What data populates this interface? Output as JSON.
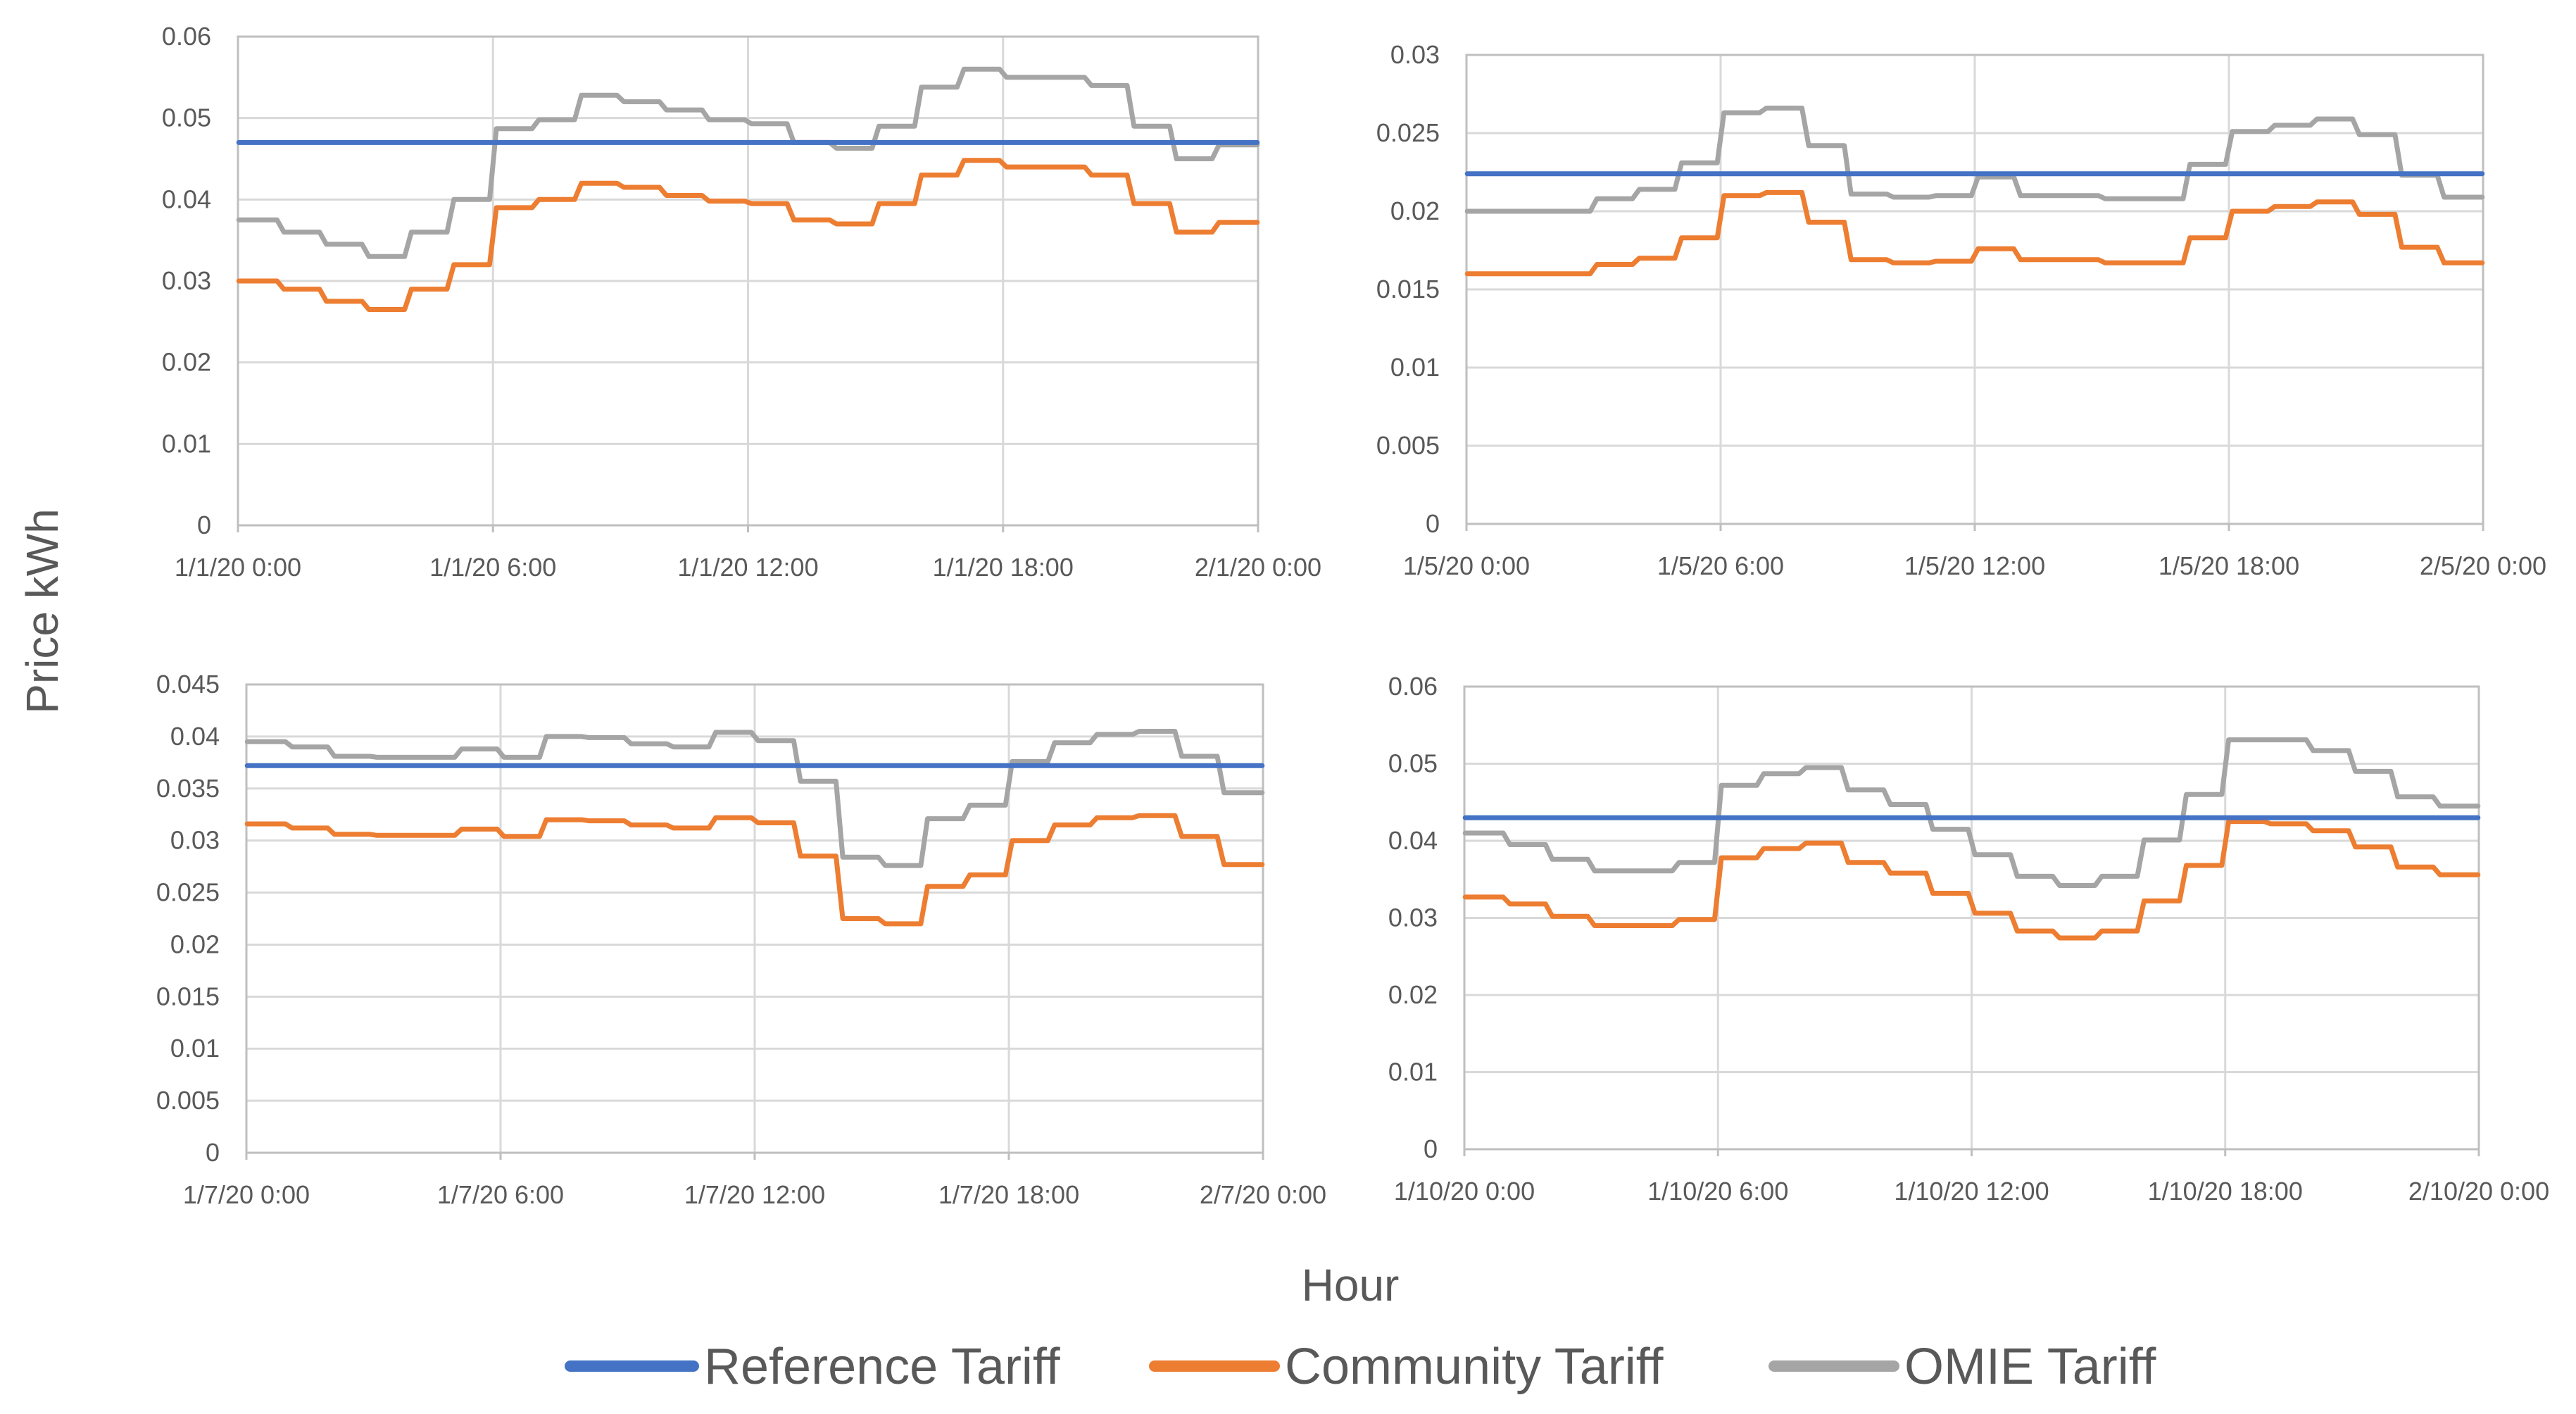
{
  "figure": {
    "ylabel": "Price kWh",
    "xlabel": "Hour",
    "legend": [
      {
        "name": "Reference Tariff",
        "color": "#4472C4"
      },
      {
        "name": "Community Tariff",
        "color": "#ED7D31"
      },
      {
        "name": "OMIE Tariff",
        "color": "#A5A5A5"
      }
    ]
  },
  "chart_data": [
    {
      "type": "line",
      "title": "",
      "xlabel": "Hour",
      "ylabel": "Price kWh",
      "xlim": [
        0,
        24
      ],
      "ylim": [
        0,
        0.06
      ],
      "yticks": [
        0,
        0.01,
        0.02,
        0.03,
        0.04,
        0.05,
        0.06
      ],
      "ytick_labels": [
        "0",
        "0.01",
        "0.02",
        "0.03",
        "0.04",
        "0.05",
        "0.06"
      ],
      "xticks": [
        0,
        6,
        12,
        18,
        24
      ],
      "xtick_labels": [
        "1/1/20 0:00",
        "1/1/20 6:00",
        "1/1/20 12:00",
        "1/1/20 18:00",
        "2/1/20 0:00"
      ],
      "x": [
        0,
        1,
        2,
        3,
        4,
        5,
        6,
        7,
        8,
        9,
        10,
        11,
        12,
        13,
        14,
        15,
        16,
        17,
        18,
        19,
        20,
        21,
        22,
        23
      ],
      "series": [
        {
          "name": "Reference Tariff",
          "values": [
            0.047,
            0.047,
            0.047,
            0.047,
            0.047,
            0.047,
            0.047,
            0.047,
            0.047,
            0.047,
            0.047,
            0.047,
            0.047,
            0.047,
            0.047,
            0.047,
            0.047,
            0.047,
            0.047,
            0.047,
            0.047,
            0.047,
            0.047,
            0.047
          ]
        },
        {
          "name": "Community Tariff",
          "values": [
            0.03,
            0.029,
            0.0275,
            0.0265,
            0.029,
            0.032,
            0.039,
            0.04,
            0.042,
            0.0415,
            0.0405,
            0.0398,
            0.0395,
            0.0375,
            0.037,
            0.0395,
            0.043,
            0.0448,
            0.044,
            0.044,
            0.043,
            0.0395,
            0.036,
            0.0372
          ]
        },
        {
          "name": "OMIE Tariff",
          "values": [
            0.0375,
            0.036,
            0.0345,
            0.033,
            0.036,
            0.04,
            0.0487,
            0.0498,
            0.0528,
            0.052,
            0.051,
            0.0498,
            0.0493,
            0.047,
            0.0463,
            0.049,
            0.0538,
            0.056,
            0.055,
            0.055,
            0.054,
            0.049,
            0.045,
            0.0467
          ]
        }
      ]
    },
    {
      "type": "line",
      "title": "",
      "xlabel": "Hour",
      "ylabel": "Price kWh",
      "xlim": [
        0,
        24
      ],
      "ylim": [
        0,
        0.03
      ],
      "yticks": [
        0,
        0.005,
        0.01,
        0.015,
        0.02,
        0.025,
        0.03
      ],
      "ytick_labels": [
        "0",
        "0.005",
        "0.01",
        "0.015",
        "0.02",
        "0.025",
        "0.03"
      ],
      "xticks": [
        0,
        6,
        12,
        18,
        24
      ],
      "xtick_labels": [
        "1/5/20 0:00",
        "1/5/20 6:00",
        "1/5/20 12:00",
        "1/5/20 18:00",
        "2/5/20 0:00"
      ],
      "x": [
        0,
        1,
        2,
        3,
        4,
        5,
        6,
        7,
        8,
        9,
        10,
        11,
        12,
        13,
        14,
        15,
        16,
        17,
        18,
        19,
        20,
        21,
        22,
        23
      ],
      "series": [
        {
          "name": "Reference Tariff",
          "values": [
            0.0224,
            0.0224,
            0.0224,
            0.0224,
            0.0224,
            0.0224,
            0.0224,
            0.0224,
            0.0224,
            0.0224,
            0.0224,
            0.0224,
            0.0224,
            0.0224,
            0.0224,
            0.0224,
            0.0224,
            0.0224,
            0.0224,
            0.0224,
            0.0224,
            0.0224,
            0.0224,
            0.0224
          ]
        },
        {
          "name": "Community Tariff",
          "values": [
            0.016,
            0.016,
            0.016,
            0.0166,
            0.017,
            0.0183,
            0.021,
            0.0212,
            0.0193,
            0.0169,
            0.0167,
            0.0168,
            0.0176,
            0.0169,
            0.0169,
            0.0167,
            0.0167,
            0.0183,
            0.02,
            0.0203,
            0.0206,
            0.0198,
            0.0177,
            0.0167
          ]
        },
        {
          "name": "OMIE Tariff",
          "values": [
            0.02,
            0.02,
            0.02,
            0.0208,
            0.0214,
            0.0231,
            0.0263,
            0.0266,
            0.0242,
            0.0211,
            0.0209,
            0.021,
            0.0222,
            0.021,
            0.021,
            0.0208,
            0.0208,
            0.023,
            0.0251,
            0.0255,
            0.0259,
            0.0249,
            0.0223,
            0.0209
          ]
        }
      ]
    },
    {
      "type": "line",
      "title": "",
      "xlabel": "Hour",
      "ylabel": "Price kWh",
      "xlim": [
        0,
        24
      ],
      "ylim": [
        0,
        0.045
      ],
      "yticks": [
        0,
        0.005,
        0.01,
        0.015,
        0.02,
        0.025,
        0.03,
        0.035,
        0.04,
        0.045
      ],
      "ytick_labels": [
        "0",
        "0.005",
        "0.01",
        "0.015",
        "0.02",
        "0.025",
        "0.03",
        "0.035",
        "0.04",
        "0.045"
      ],
      "xticks": [
        0,
        6,
        12,
        18,
        24
      ],
      "xtick_labels": [
        "1/7/20 0:00",
        "1/7/20 6:00",
        "1/7/20 12:00",
        "1/7/20 18:00",
        "2/7/20 0:00"
      ],
      "x": [
        0,
        1,
        2,
        3,
        4,
        5,
        6,
        7,
        8,
        9,
        10,
        11,
        12,
        13,
        14,
        15,
        16,
        17,
        18,
        19,
        20,
        21,
        22,
        23
      ],
      "series": [
        {
          "name": "Reference Tariff",
          "values": [
            0.0372,
            0.0372,
            0.0372,
            0.0372,
            0.0372,
            0.0372,
            0.0372,
            0.0372,
            0.0372,
            0.0372,
            0.0372,
            0.0372,
            0.0372,
            0.0372,
            0.0372,
            0.0372,
            0.0372,
            0.0372,
            0.0372,
            0.0372,
            0.0372,
            0.0372,
            0.0372,
            0.0372
          ]
        },
        {
          "name": "Community Tariff",
          "values": [
            0.0316,
            0.0312,
            0.0306,
            0.0305,
            0.0305,
            0.0311,
            0.0304,
            0.032,
            0.0319,
            0.0315,
            0.0312,
            0.0322,
            0.0317,
            0.0285,
            0.0225,
            0.022,
            0.0256,
            0.0267,
            0.03,
            0.0315,
            0.0322,
            0.0324,
            0.0304,
            0.0277
          ]
        },
        {
          "name": "OMIE Tariff",
          "values": [
            0.0395,
            0.039,
            0.0381,
            0.038,
            0.038,
            0.0388,
            0.038,
            0.04,
            0.0399,
            0.0393,
            0.039,
            0.0404,
            0.0396,
            0.0357,
            0.0284,
            0.0276,
            0.0321,
            0.0334,
            0.0376,
            0.0394,
            0.0402,
            0.0405,
            0.0381,
            0.0346
          ]
        }
      ]
    },
    {
      "type": "line",
      "title": "",
      "xlabel": "Hour",
      "ylabel": "Price kWh",
      "xlim": [
        0,
        24
      ],
      "ylim": [
        0,
        0.06
      ],
      "yticks": [
        0,
        0.01,
        0.02,
        0.03,
        0.04,
        0.05,
        0.06
      ],
      "ytick_labels": [
        "0",
        "0.01",
        "0.02",
        "0.03",
        "0.04",
        "0.05",
        "0.06"
      ],
      "xticks": [
        0,
        6,
        12,
        18,
        24
      ],
      "xtick_labels": [
        "1/10/20 0:00",
        "1/10/20 6:00",
        "1/10/20 12:00",
        "1/10/20 18:00",
        "2/10/20 0:00"
      ],
      "x": [
        0,
        1,
        2,
        3,
        4,
        5,
        6,
        7,
        8,
        9,
        10,
        11,
        12,
        13,
        14,
        15,
        16,
        17,
        18,
        19,
        20,
        21,
        22,
        23
      ],
      "series": [
        {
          "name": "Reference Tariff",
          "values": [
            0.043,
            0.043,
            0.043,
            0.043,
            0.043,
            0.043,
            0.043,
            0.043,
            0.043,
            0.043,
            0.043,
            0.043,
            0.043,
            0.043,
            0.043,
            0.043,
            0.043,
            0.043,
            0.043,
            0.043,
            0.043,
            0.043,
            0.043,
            0.043
          ]
        },
        {
          "name": "Community Tariff",
          "values": [
            0.0327,
            0.0318,
            0.0302,
            0.029,
            0.029,
            0.0298,
            0.0378,
            0.039,
            0.0397,
            0.0372,
            0.0358,
            0.0332,
            0.0306,
            0.0283,
            0.0274,
            0.0283,
            0.0322,
            0.0368,
            0.0425,
            0.0422,
            0.0413,
            0.0392,
            0.0366,
            0.0356
          ]
        },
        {
          "name": "OMIE Tariff",
          "values": [
            0.041,
            0.0395,
            0.0376,
            0.0361,
            0.0361,
            0.0372,
            0.0472,
            0.0487,
            0.0495,
            0.0466,
            0.0447,
            0.0415,
            0.0382,
            0.0354,
            0.0342,
            0.0354,
            0.0401,
            0.046,
            0.0531,
            0.0531,
            0.0517,
            0.049,
            0.0457,
            0.0445
          ]
        }
      ]
    }
  ]
}
